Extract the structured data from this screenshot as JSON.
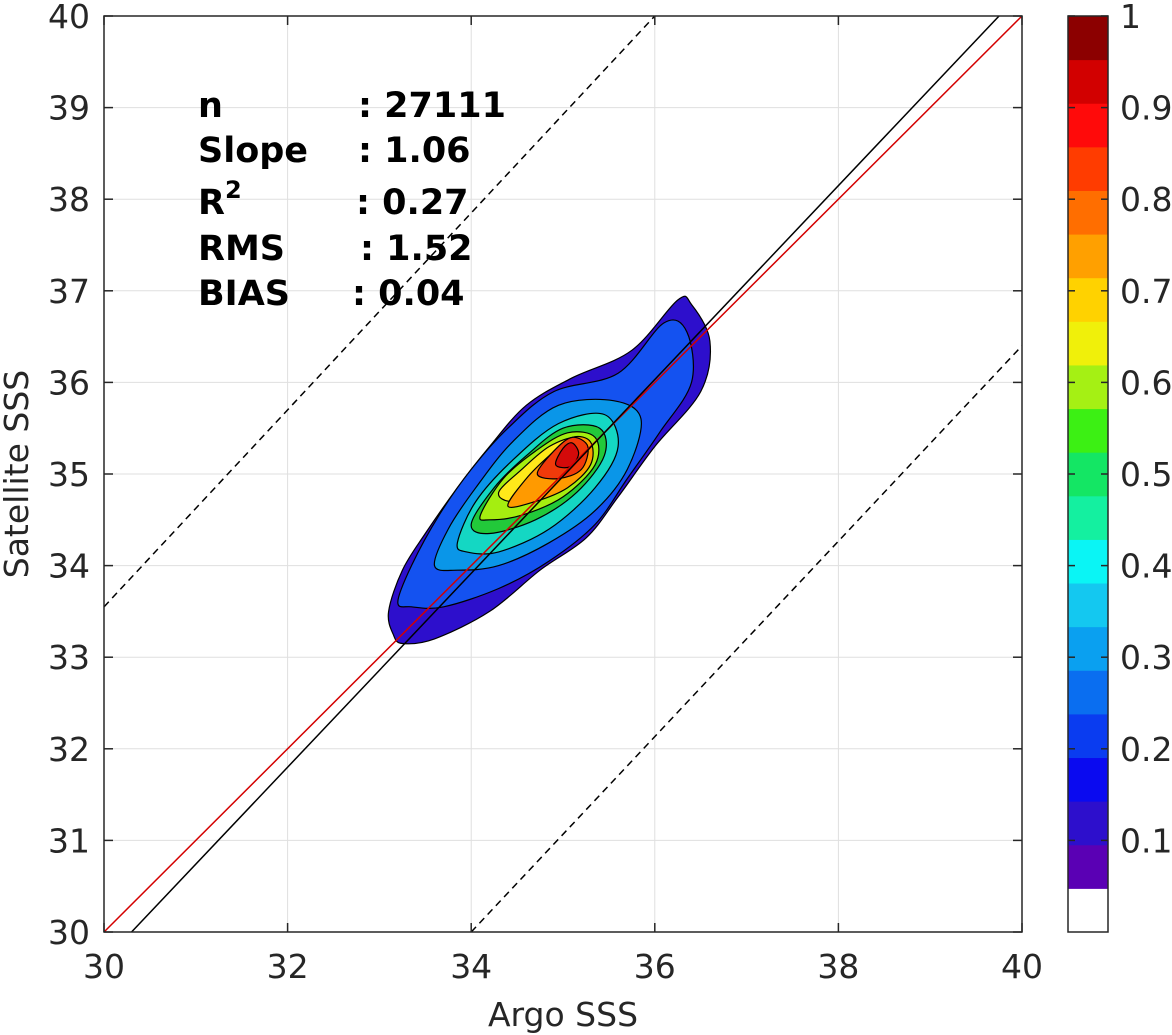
{
  "chart_data": {
    "type": "heatmap",
    "subtype": "filled-contour density scatter",
    "xlabel": "Argo SSS",
    "ylabel": "Satellite SSS",
    "xlim": [
      30,
      40
    ],
    "ylim": [
      30,
      40
    ],
    "xticks": [
      30,
      32,
      34,
      36,
      38,
      40
    ],
    "xtick_labels": [
      "30",
      "32",
      "34",
      "36",
      "38",
      "40"
    ],
    "yticks": [
      30,
      31,
      32,
      33,
      34,
      35,
      36,
      37,
      38,
      39,
      40
    ],
    "ytick_labels": [
      "30",
      "31",
      "32",
      "33",
      "34",
      "35",
      "36",
      "37",
      "38",
      "39",
      "40"
    ],
    "grid": true,
    "stats": [
      {
        "label": "n",
        "value": ": 27111"
      },
      {
        "label": "Slope",
        "value": ": 1.06"
      },
      {
        "label": "R",
        "sup": "2",
        "value": ": 0.27"
      },
      {
        "label": "RMS",
        "value": ": 1.52"
      },
      {
        "label": "BIAS",
        "value": ": 0.04"
      }
    ],
    "lines": [
      {
        "role": "one-to-one",
        "color": "#d40000",
        "style": "solid",
        "points": [
          [
            30,
            30
          ],
          [
            40,
            40
          ]
        ]
      },
      {
        "role": "regression",
        "color": "#000000",
        "style": "solid",
        "points": [
          [
            30.3,
            30
          ],
          [
            39.75,
            40
          ]
        ]
      },
      {
        "role": "upper-bound",
        "color": "#000000",
        "style": "dashed",
        "points": [
          [
            30,
            33.55
          ],
          [
            36.0,
            40
          ]
        ]
      },
      {
        "role": "lower-bound",
        "color": "#000000",
        "style": "dashed",
        "points": [
          [
            34.0,
            30
          ],
          [
            40,
            36.4
          ]
        ]
      }
    ],
    "contours": [
      {
        "level": 0.05,
        "color": "#2d0fcc",
        "points": [
          [
            33.15,
            33.25
          ],
          [
            33.1,
            33.5
          ],
          [
            33.25,
            33.95
          ],
          [
            33.5,
            34.35
          ],
          [
            33.85,
            34.85
          ],
          [
            34.2,
            35.3
          ],
          [
            34.6,
            35.75
          ],
          [
            35.1,
            36.05
          ],
          [
            35.75,
            36.35
          ],
          [
            36.25,
            36.9
          ],
          [
            36.4,
            36.85
          ],
          [
            36.6,
            36.45
          ],
          [
            36.5,
            35.9
          ],
          [
            36.0,
            35.3
          ],
          [
            35.6,
            34.75
          ],
          [
            35.25,
            34.3
          ],
          [
            34.75,
            33.95
          ],
          [
            34.2,
            33.5
          ],
          [
            33.6,
            33.2
          ],
          [
            33.25,
            33.15
          ]
        ]
      },
      {
        "level": 0.15,
        "color": "#1452f0",
        "points": [
          [
            33.2,
            33.6
          ],
          [
            33.35,
            34.0
          ],
          [
            33.65,
            34.55
          ],
          [
            34.0,
            35.05
          ],
          [
            34.4,
            35.5
          ],
          [
            34.9,
            35.9
          ],
          [
            35.6,
            36.1
          ],
          [
            36.1,
            36.65
          ],
          [
            36.35,
            36.55
          ],
          [
            36.4,
            36.0
          ],
          [
            36.05,
            35.45
          ],
          [
            35.7,
            34.95
          ],
          [
            35.35,
            34.45
          ],
          [
            34.85,
            34.05
          ],
          [
            34.3,
            33.75
          ],
          [
            33.7,
            33.55
          ],
          [
            33.35,
            33.55
          ]
        ]
      },
      {
        "level": 0.25,
        "color": "#0a96e8",
        "points": [
          [
            33.6,
            34.0
          ],
          [
            33.75,
            34.4
          ],
          [
            34.05,
            34.85
          ],
          [
            34.45,
            35.35
          ],
          [
            34.95,
            35.75
          ],
          [
            35.55,
            35.8
          ],
          [
            35.85,
            35.6
          ],
          [
            35.7,
            35.05
          ],
          [
            35.35,
            34.6
          ],
          [
            34.85,
            34.25
          ],
          [
            34.3,
            34.0
          ],
          [
            33.85,
            33.95
          ]
        ]
      },
      {
        "level": 0.35,
        "color": "#14d7c3",
        "points": [
          [
            33.85,
            34.25
          ],
          [
            34.05,
            34.7
          ],
          [
            34.45,
            35.15
          ],
          [
            34.95,
            35.55
          ],
          [
            35.45,
            35.65
          ],
          [
            35.6,
            35.3
          ],
          [
            35.35,
            34.85
          ],
          [
            34.85,
            34.4
          ],
          [
            34.3,
            34.15
          ],
          [
            33.95,
            34.15
          ]
        ]
      },
      {
        "level": 0.45,
        "color": "#22c93a",
        "points": [
          [
            34.0,
            34.45
          ],
          [
            34.25,
            34.85
          ],
          [
            34.6,
            35.2
          ],
          [
            35.0,
            35.5
          ],
          [
            35.4,
            35.5
          ],
          [
            35.45,
            35.2
          ],
          [
            35.15,
            34.8
          ],
          [
            34.7,
            34.5
          ],
          [
            34.2,
            34.35
          ]
        ]
      },
      {
        "level": 0.55,
        "color": "#a5ee10",
        "points": [
          [
            34.1,
            34.55
          ],
          [
            34.35,
            34.95
          ],
          [
            34.7,
            35.25
          ],
          [
            35.05,
            35.45
          ],
          [
            35.35,
            35.4
          ],
          [
            35.35,
            35.1
          ],
          [
            35.0,
            34.75
          ],
          [
            34.55,
            34.55
          ],
          [
            34.2,
            34.5
          ]
        ]
      },
      {
        "level": 0.65,
        "color": "#ffe81a",
        "points": [
          [
            34.3,
            34.8
          ],
          [
            34.55,
            35.05
          ],
          [
            34.85,
            35.3
          ],
          [
            35.15,
            35.4
          ],
          [
            35.3,
            35.25
          ],
          [
            35.2,
            35.0
          ],
          [
            34.85,
            34.8
          ],
          [
            34.45,
            34.7
          ]
        ]
      },
      {
        "level": 0.75,
        "color": "#ff9a00",
        "points": [
          [
            34.4,
            34.65
          ],
          [
            34.6,
            34.95
          ],
          [
            34.85,
            35.2
          ],
          [
            35.1,
            35.4
          ],
          [
            35.3,
            35.35
          ],
          [
            35.3,
            35.1
          ],
          [
            35.05,
            34.85
          ],
          [
            34.7,
            34.7
          ]
        ]
      },
      {
        "level": 0.85,
        "color": "#f03a0a",
        "points": [
          [
            34.72,
            35.0
          ],
          [
            34.9,
            35.25
          ],
          [
            35.1,
            35.4
          ],
          [
            35.27,
            35.3
          ],
          [
            35.2,
            35.05
          ],
          [
            34.95,
            34.95
          ]
        ]
      },
      {
        "level": 0.95,
        "color": "#d40a0a",
        "points": [
          [
            34.92,
            35.1
          ],
          [
            35.0,
            35.28
          ],
          [
            35.1,
            35.34
          ],
          [
            35.17,
            35.22
          ],
          [
            35.08,
            35.08
          ]
        ]
      }
    ],
    "colorbar": {
      "ticks": [
        0.1,
        0.2,
        0.3,
        0.4,
        0.5,
        0.6,
        0.7,
        0.8,
        0.9,
        1
      ],
      "tick_labels": [
        "0.1",
        "0.2",
        "0.3",
        "0.4",
        "0.5",
        "0.6",
        "0.7",
        "0.8",
        "0.9",
        "1"
      ],
      "range": [
        0,
        1
      ],
      "colors": [
        "#ffffff",
        "#5a00b4",
        "#2d0fcc",
        "#0a0af0",
        "#0a3cf0",
        "#0a6ef0",
        "#0aa0f0",
        "#14c8f0",
        "#0af5f5",
        "#14f0a0",
        "#14e664",
        "#3cf014",
        "#a5f014",
        "#f0f00a",
        "#ffd200",
        "#ffa000",
        "#ff6e00",
        "#ff3c00",
        "#ff0a0a",
        "#d20000",
        "#8c0000"
      ]
    }
  }
}
